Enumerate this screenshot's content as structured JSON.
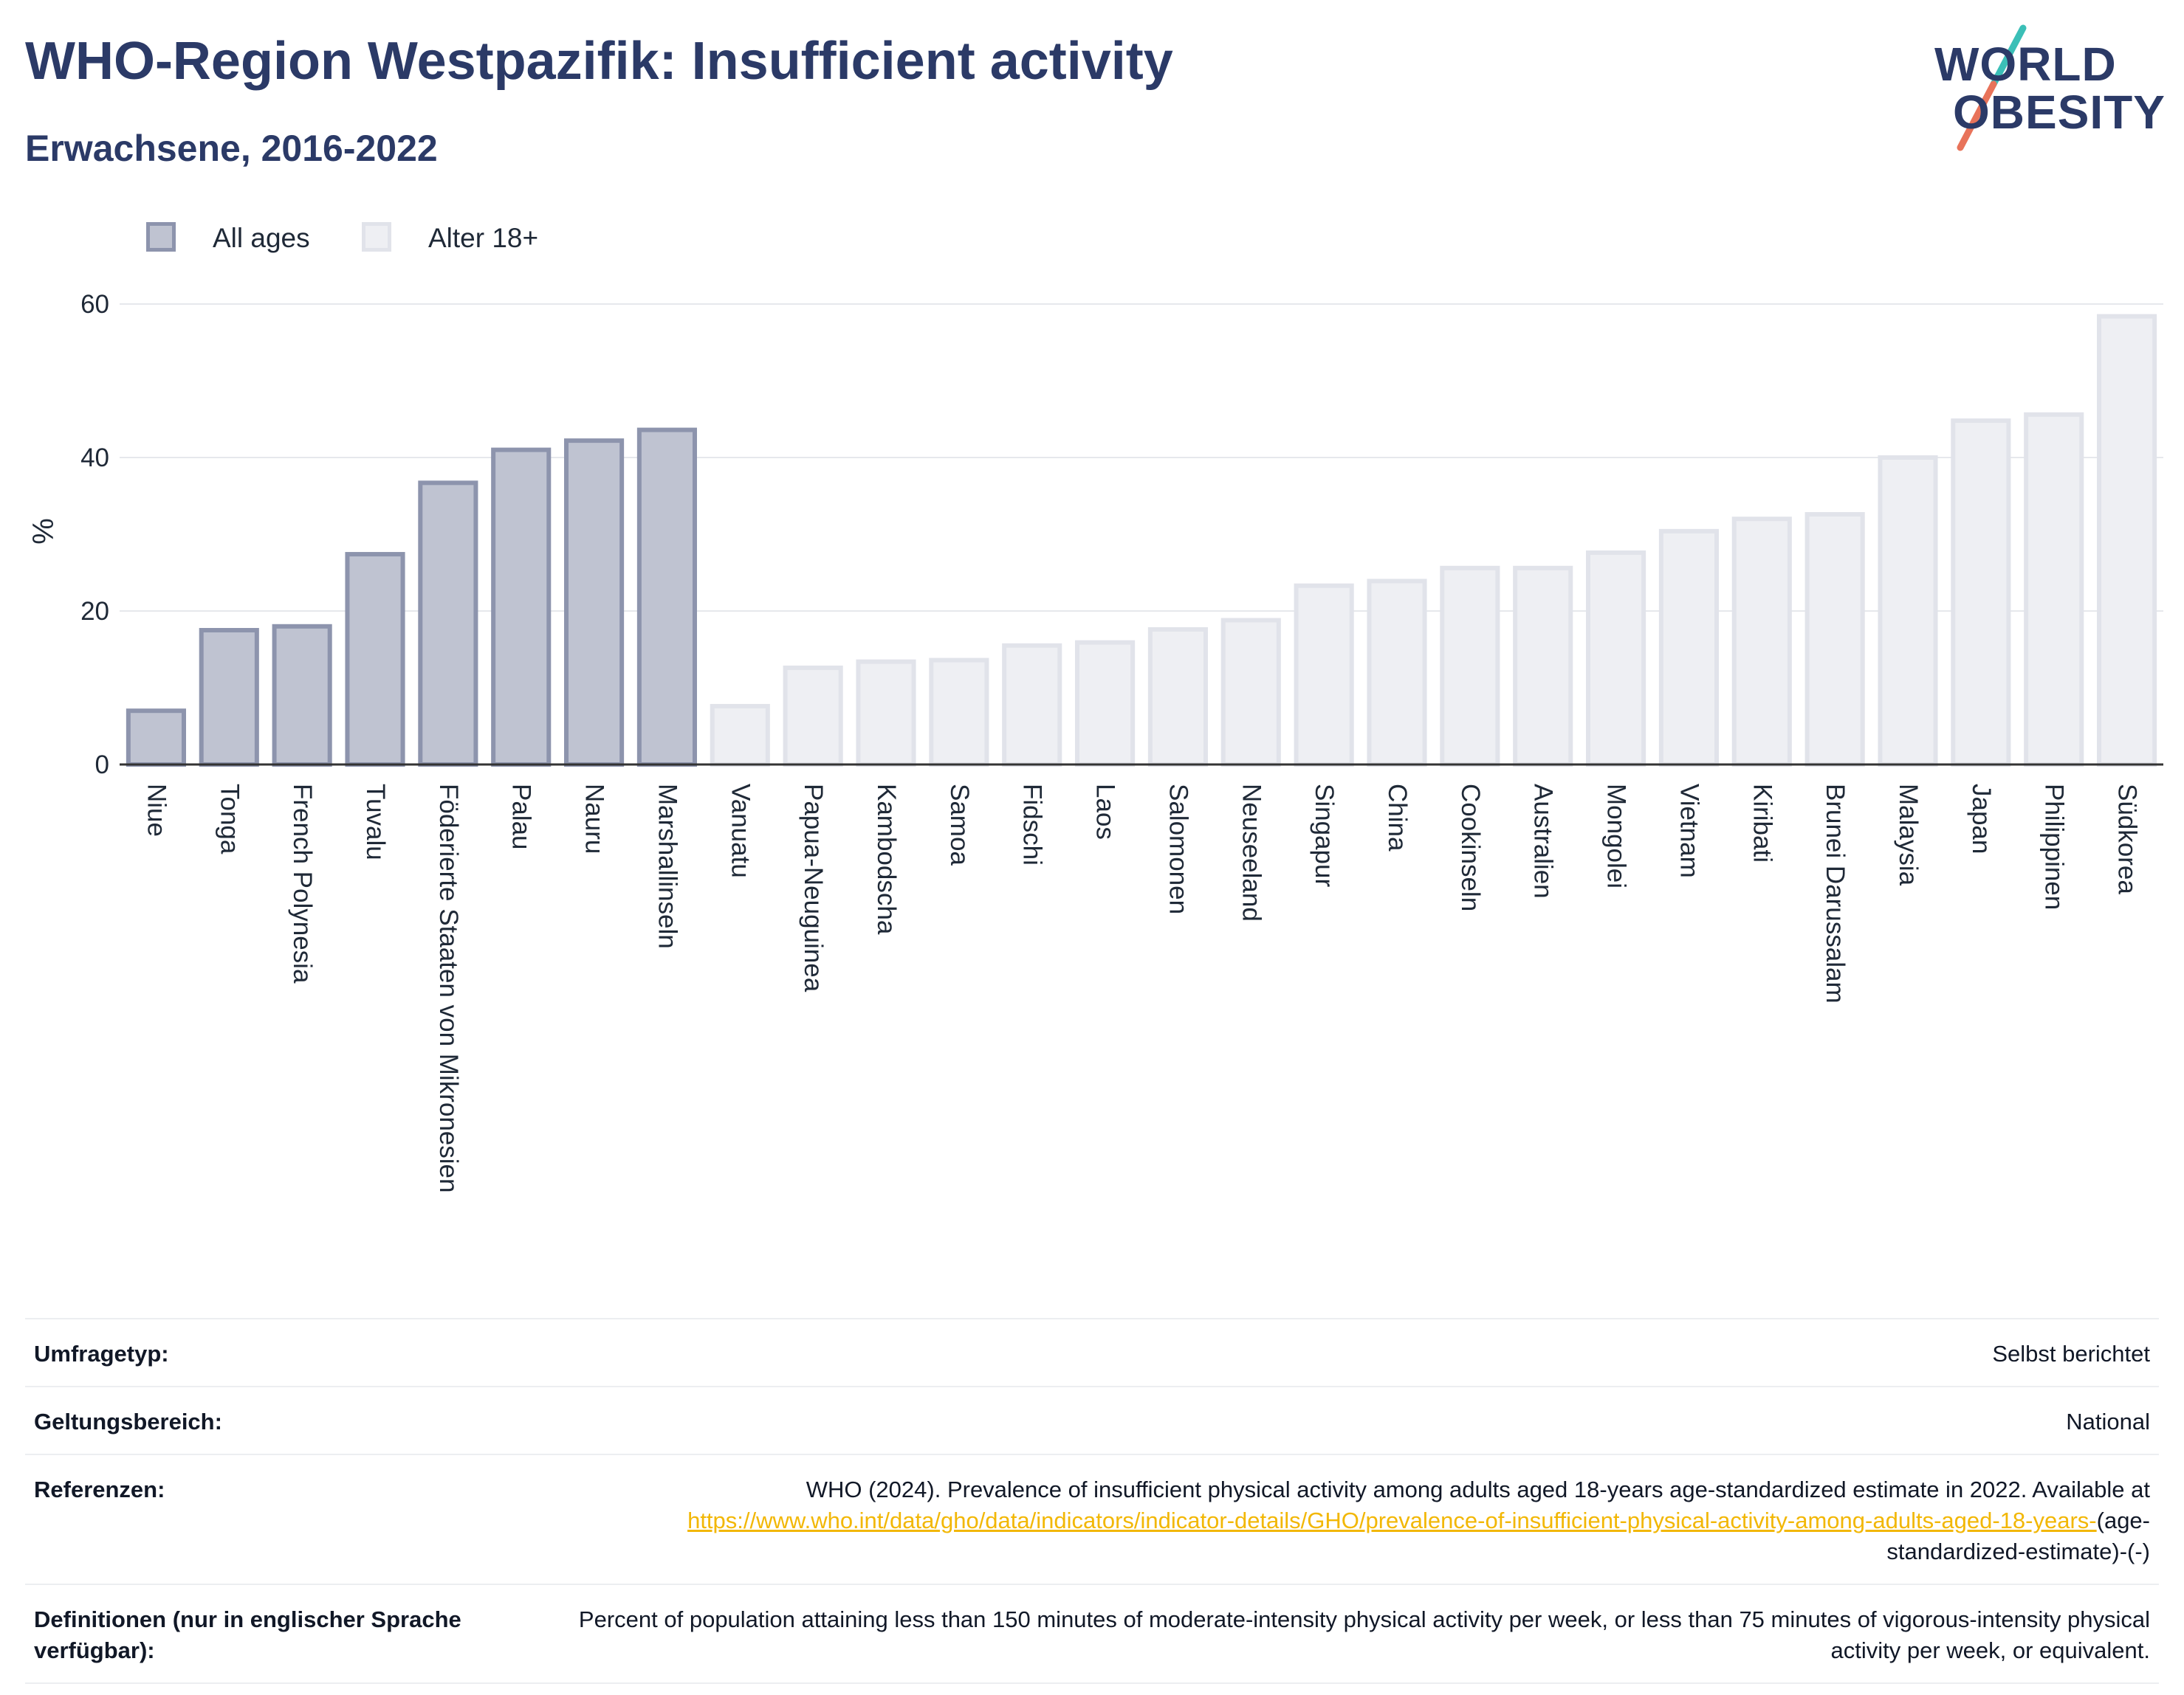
{
  "header": {
    "title": "WHO-Region Westpazifik: Insufficient activity",
    "subtitle": "Erwachsene, 2016-2022"
  },
  "logo": {
    "line1": "WORLD",
    "line2": "OBESITY",
    "colors": {
      "text": "#2b3a67",
      "slash_top": "#3bbfb7",
      "slash_bottom": "#e8735a"
    }
  },
  "legend": [
    {
      "label": "All ages",
      "color": "#bfc3d1",
      "border": "#8d94ad"
    },
    {
      "label": "Alter 18+",
      "color": "#eeeff3",
      "border": "#e1e3ea"
    }
  ],
  "chart_data": {
    "type": "bar",
    "ylabel": "%",
    "ylim": [
      0,
      60
    ],
    "yticks": [
      0,
      20,
      40,
      60
    ],
    "grid": true,
    "legend_position": "top-left",
    "categories": [
      "Niue",
      "Tonga",
      "French Polynesia",
      "Tuvalu",
      "Föderierte Staaten von Mikronesien",
      "Palau",
      "Nauru",
      "Marshallinseln",
      "Vanuatu",
      "Papua-Neuguinea",
      "Kambodscha",
      "Samoa",
      "Fidschi",
      "Laos",
      "Salomonen",
      "Neuseeland",
      "Singapur",
      "China",
      "Cookinseln",
      "Australien",
      "Mongolei",
      "Vietnam",
      "Kiribati",
      "Brunei Darussalam",
      "Malaysia",
      "Japan",
      "Philippinen",
      "Südkorea"
    ],
    "values": [
      7,
      17.5,
      18,
      27.4,
      36.7,
      41,
      42.2,
      43.6,
      7.6,
      12.6,
      13.4,
      13.6,
      15.5,
      15.9,
      17.6,
      18.8,
      23.3,
      23.9,
      25.6,
      25.6,
      27.6,
      30.4,
      32,
      32.6,
      40,
      44.8,
      45.6,
      58.4
    ],
    "series_index": [
      0,
      0,
      0,
      0,
      0,
      0,
      0,
      0,
      1,
      1,
      1,
      1,
      1,
      1,
      1,
      1,
      1,
      1,
      1,
      1,
      1,
      1,
      1,
      1,
      1,
      1,
      1,
      1
    ],
    "series_names": [
      "All ages",
      "Alter 18+"
    ]
  },
  "info": {
    "rows": [
      {
        "label": "Umfragetyp:",
        "value": "Selbst berichtet"
      },
      {
        "label": "Geltungsbereich:",
        "value": "National"
      },
      {
        "label": "Referenzen:",
        "value_pre": "WHO (2024). Prevalence of insufficient physical activity among adults aged 18-years age-standardized estimate in 2022. Available at",
        "link_text": "https://www.who.int/data/gho/data/indicators/indicator-details/GHO/prevalence-of-insufficient-physical-activity-among-adults-aged-18-years-",
        "value_post": "(age-standardized-estimate)-(-)"
      },
      {
        "label": "Definitionen (nur in englischer Sprache verfügbar):",
        "value": "Percent of population attaining less than 150 minutes of moderate-intensity physical activity per week, or less than 75 minutes of vigorous-intensity physical activity per week, or equivalent."
      }
    ]
  }
}
